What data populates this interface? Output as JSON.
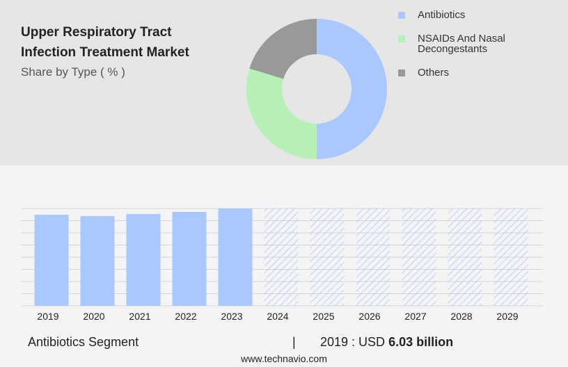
{
  "chart_data": [
    {
      "type": "pie",
      "donut": true,
      "title": [
        "Upper Respiratory Tract",
        "Infection Treatment Market"
      ],
      "subtitle": "Share by Type ( % )",
      "categories": [
        "Antibiotics",
        "NSAIDs And Nasal Decongestants",
        "Others"
      ],
      "values": [
        50,
        29.7,
        20.3
      ],
      "colors": [
        "#a8c8ff",
        "#b6f0b6",
        "#999999"
      ]
    },
    {
      "type": "bar",
      "categories": [
        "2019",
        "2020",
        "2021",
        "2022",
        "2023",
        "2024",
        "2025",
        "2026",
        "2027",
        "2028",
        "2029"
      ],
      "values": [
        6.03,
        5.94,
        6.08,
        6.21,
        6.44,
        null,
        null,
        null,
        null,
        null,
        null
      ],
      "color": "#a8c8ff",
      "ylim": [
        0,
        6.44
      ]
    }
  ],
  "footer": {
    "segment": "Antibiotics Segment",
    "separator": "|",
    "year_label": "2019 : USD",
    "value": "6.03 billion",
    "source": "www.technavio.com"
  }
}
